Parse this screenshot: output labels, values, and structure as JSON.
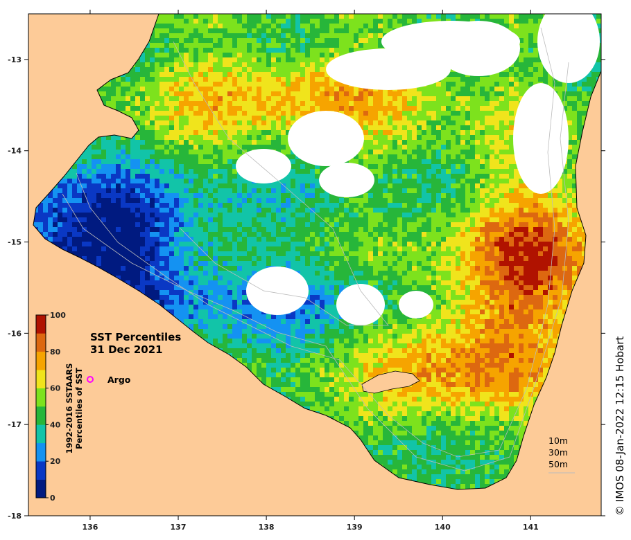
{
  "map": {
    "title_line1": "SST Percentiles",
    "title_line2": "31 Dec 2021",
    "legend": {
      "argo_label": "Argo",
      "argo_color": "#ff00ff"
    },
    "depth_labels": [
      "10m",
      "30m",
      "50m"
    ],
    "copyright": "© IMOS 08-Jan-2022 12:15 Hobart",
    "land_color": "#fdcb98",
    "colorbar": {
      "axis_label_line1": "1992-2016 SSTAARS",
      "axis_label_line2": "Percentiles of SST",
      "tick_labels": [
        "0",
        "20",
        "40",
        "60",
        "80",
        "100"
      ],
      "colors": [
        "#001a80",
        "#0a38c4",
        "#1492f2",
        "#12c4a8",
        "#27b63a",
        "#7de21d",
        "#f0e41c",
        "#f6a400",
        "#dd6810",
        "#b01200"
      ]
    },
    "x_axis": {
      "tick_labels": [
        "136",
        "137",
        "138",
        "139",
        "140",
        "141"
      ]
    },
    "y_axis": {
      "tick_labels": [
        "-13",
        "-14",
        "-15",
        "-16",
        "-17",
        "-18"
      ]
    },
    "lon_range": [
      135.3,
      141.8
    ],
    "lat_range": [
      -18,
      -12.5
    ]
  }
}
